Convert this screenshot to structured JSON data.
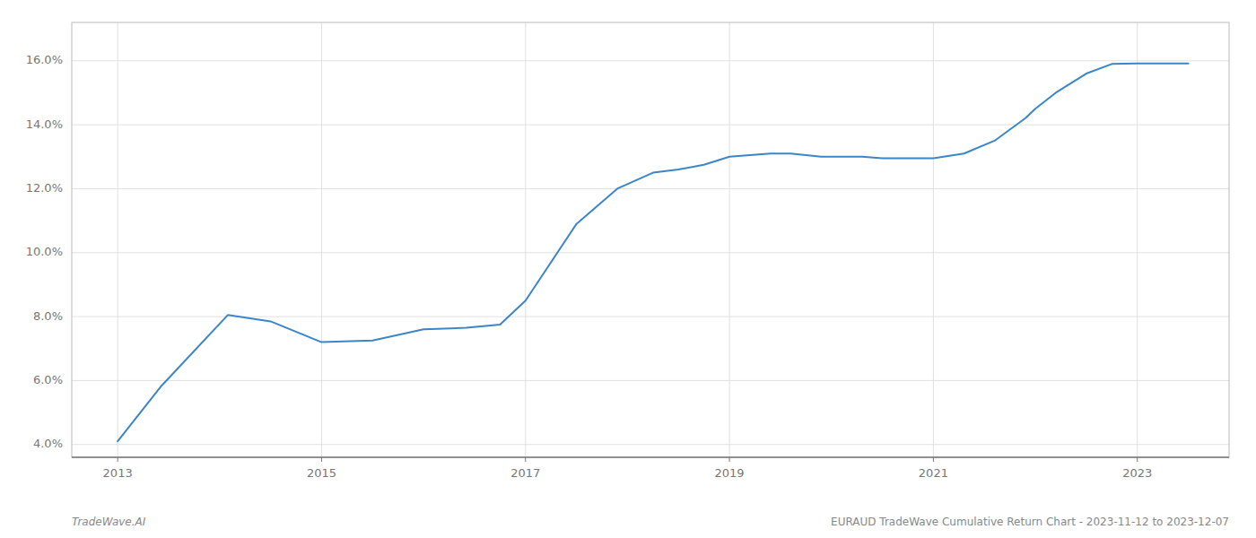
{
  "chart_data": {
    "type": "line",
    "x": [
      2013.0,
      2013.42,
      2014.08,
      2014.5,
      2015.0,
      2015.5,
      2016.0,
      2016.42,
      2016.75,
      2017.0,
      2017.5,
      2017.9,
      2018.25,
      2018.5,
      2018.75,
      2019.0,
      2019.4,
      2019.6,
      2019.9,
      2020.0,
      2020.3,
      2020.5,
      2020.8,
      2021.0,
      2021.3,
      2021.6,
      2021.9,
      2022.0,
      2022.2,
      2022.5,
      2022.75,
      2023.0,
      2023.5
    ],
    "values": [
      4.1,
      5.8,
      8.05,
      7.85,
      7.2,
      7.25,
      7.6,
      7.65,
      7.75,
      8.5,
      10.9,
      12.0,
      12.5,
      12.6,
      12.75,
      13.0,
      13.1,
      13.1,
      13.0,
      13.0,
      13.0,
      12.95,
      12.95,
      12.95,
      13.1,
      13.5,
      14.2,
      14.5,
      15.0,
      15.6,
      15.9,
      15.92,
      15.92
    ],
    "color": "#3a86c8",
    "xlim": [
      2012.55,
      2023.9
    ],
    "ylim": [
      3.6,
      17.2
    ],
    "xticks": [
      2013,
      2015,
      2017,
      2019,
      2021,
      2023
    ],
    "yticks": [
      {
        "value": 4.0,
        "label": "4.0%"
      },
      {
        "value": 6.0,
        "label": "6.0%"
      },
      {
        "value": 8.0,
        "label": "8.0%"
      },
      {
        "value": 10.0,
        "label": "10.0%"
      },
      {
        "value": 12.0,
        "label": "12.0%"
      },
      {
        "value": 14.0,
        "label": "14.0%"
      },
      {
        "value": 16.0,
        "label": "16.0%"
      }
    ],
    "grid": true,
    "annotations": [
      "TradeWave.AI",
      "EURAUD TradeWave Cumulative Return Chart - 2023-11-12 to 2023-12-07"
    ]
  }
}
